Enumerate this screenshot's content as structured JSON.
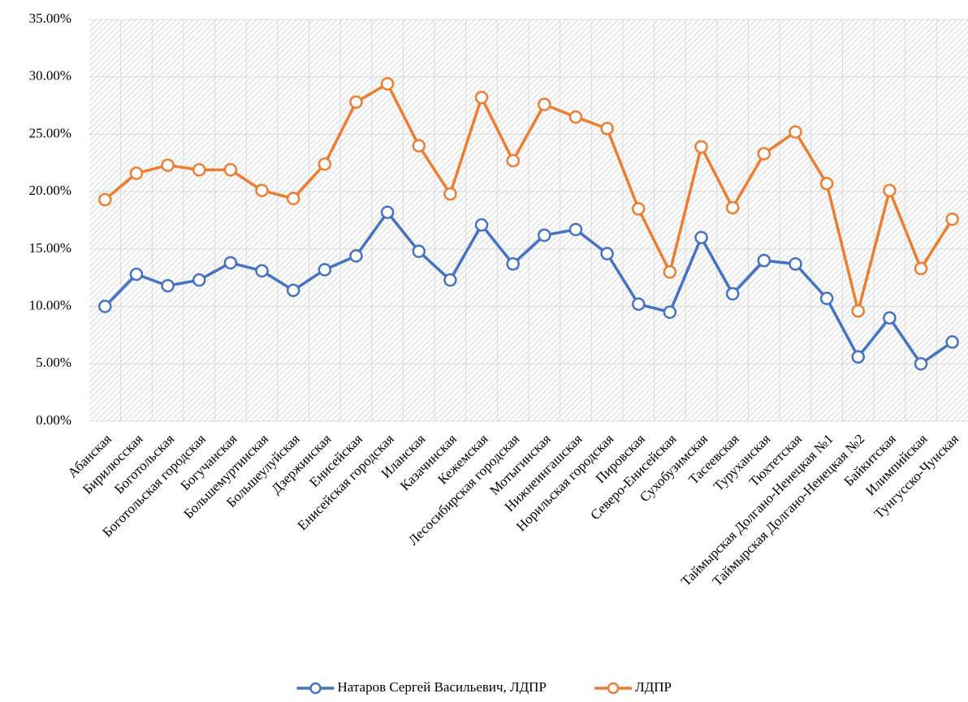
{
  "chart_data": {
    "type": "line",
    "categories": [
      "Абанская",
      "Бирилюсская",
      "Боготольская",
      "Боготольская городская",
      "Богучанская",
      "Большемуртинская",
      "Большеулуйская",
      "Дзержинская",
      "Енисейская",
      "Енисейская городская",
      "Иланская",
      "Казачинская",
      "Кежемская",
      "Лесосибирская городская",
      "Мотыгинская",
      "Нижнеингашская",
      "Норильская городская",
      "Пировская",
      "Северо-Енисейская",
      "Сухобузимская",
      "Тасеевская",
      "Туруханская",
      "Тюхтетская",
      "Таймырская Долгано-Ненецкая №1",
      "Таймырская Долгано-Ненецкая №2",
      "Байкитская",
      "Илимпийская",
      "Тунгусско-Чунская"
    ],
    "series": [
      {
        "name": "Натаров Сергей Васильевич, ЛДПР",
        "color": "#4472c4",
        "values": [
          10.0,
          12.8,
          11.8,
          12.3,
          13.8,
          13.1,
          11.4,
          13.2,
          14.4,
          18.2,
          14.8,
          12.3,
          17.1,
          13.7,
          16.2,
          16.7,
          14.6,
          10.2,
          9.5,
          16.0,
          11.1,
          14.0,
          13.7,
          10.7,
          5.6,
          9.0,
          5.0,
          6.9
        ]
      },
      {
        "name": "ЛДПР",
        "color": "#ed7d31",
        "values": [
          19.3,
          21.6,
          22.3,
          21.9,
          21.9,
          20.1,
          19.4,
          22.4,
          27.8,
          29.4,
          24.0,
          19.8,
          28.2,
          22.7,
          27.6,
          26.5,
          25.5,
          18.5,
          13.0,
          23.9,
          18.6,
          23.3,
          25.2,
          20.7,
          9.6,
          20.1,
          13.3,
          17.6
        ]
      }
    ],
    "ylim": [
      0,
      35
    ],
    "yticks": [
      {
        "value": 0,
        "label": "0.00%"
      },
      {
        "value": 5,
        "label": "5.00%"
      },
      {
        "value": 10,
        "label": "10.00%"
      },
      {
        "value": 15,
        "label": "15.00%"
      },
      {
        "value": 20,
        "label": "20.00%"
      },
      {
        "value": 25,
        "label": "25.00%"
      },
      {
        "value": 30,
        "label": "30.00%"
      },
      {
        "value": 35,
        "label": "35.00%"
      }
    ],
    "grid": true,
    "legend": "bottom"
  }
}
